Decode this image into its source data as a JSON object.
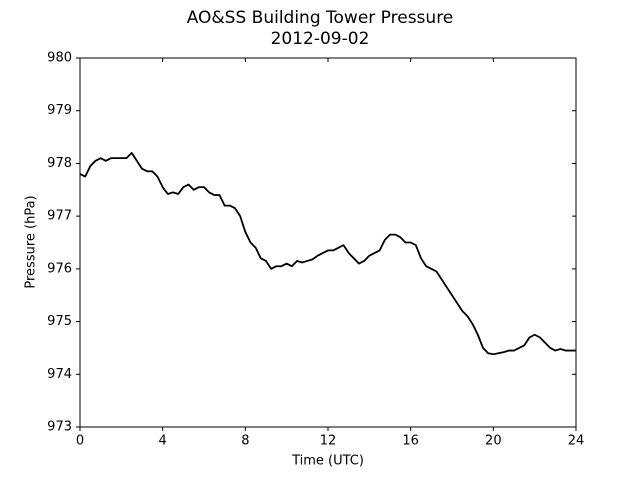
{
  "chart_data": {
    "type": "line",
    "title": "AO&SS Building Tower Pressure",
    "subtitle": "2012-09-02",
    "x_label": "Time (UTC)",
    "y_label": "Pressure (hPa)",
    "xlim": [
      0,
      24
    ],
    "xticks": [
      0,
      4,
      8,
      12,
      16,
      20,
      24
    ],
    "ylim": [
      973,
      980
    ],
    "yticks": [
      973,
      974,
      975,
      976,
      977,
      978,
      979,
      980
    ],
    "grid": false,
    "series": [
      {
        "name": "Pressure",
        "color": "#000000",
        "x": [
          0,
          0.25,
          0.5,
          0.75,
          1,
          1.25,
          1.5,
          1.75,
          2,
          2.25,
          2.5,
          2.75,
          3,
          3.25,
          3.5,
          3.75,
          4,
          4.25,
          4.5,
          4.75,
          5,
          5.25,
          5.5,
          5.75,
          6,
          6.25,
          6.5,
          6.75,
          7,
          7.25,
          7.5,
          7.75,
          8,
          8.25,
          8.5,
          8.75,
          9,
          9.25,
          9.5,
          9.75,
          10,
          10.25,
          10.5,
          10.75,
          11,
          11.25,
          11.5,
          11.75,
          12,
          12.25,
          12.5,
          12.75,
          13,
          13.25,
          13.5,
          13.75,
          14,
          14.25,
          14.5,
          14.75,
          15,
          15.25,
          15.5,
          15.75,
          16,
          16.25,
          16.5,
          16.75,
          17,
          17.25,
          17.5,
          17.75,
          18,
          18.25,
          18.5,
          18.75,
          19,
          19.25,
          19.5,
          19.75,
          20,
          20.25,
          20.5,
          20.75,
          21,
          21.25,
          21.5,
          21.75,
          22,
          22.25,
          22.5,
          22.75,
          23,
          23.25,
          23.5,
          23.75,
          24
        ],
        "values": [
          977.8,
          977.75,
          977.95,
          978.05,
          978.1,
          978.05,
          978.1,
          978.1,
          978.1,
          978.1,
          978.2,
          978.05,
          977.9,
          977.85,
          977.85,
          977.75,
          977.55,
          977.42,
          977.45,
          977.42,
          977.55,
          977.6,
          977.5,
          977.55,
          977.55,
          977.45,
          977.4,
          977.4,
          977.2,
          977.2,
          977.15,
          977.0,
          976.7,
          976.5,
          976.4,
          976.2,
          976.15,
          976.0,
          976.05,
          976.05,
          976.1,
          976.05,
          976.15,
          976.12,
          976.15,
          976.18,
          976.25,
          976.3,
          976.35,
          976.35,
          976.4,
          976.45,
          976.3,
          976.2,
          976.1,
          976.15,
          976.25,
          976.3,
          976.35,
          976.55,
          976.65,
          976.65,
          976.6,
          976.5,
          976.5,
          976.45,
          976.2,
          976.05,
          976.0,
          975.95,
          975.8,
          975.65,
          975.5,
          975.35,
          975.2,
          975.1,
          974.95,
          974.75,
          974.5,
          974.4,
          974.38,
          974.4,
          974.42,
          974.45,
          974.45,
          974.5,
          974.55,
          974.7,
          974.75,
          974.7,
          974.6,
          974.5,
          974.45,
          974.48,
          974.45,
          974.45,
          974.45
        ]
      }
    ]
  }
}
